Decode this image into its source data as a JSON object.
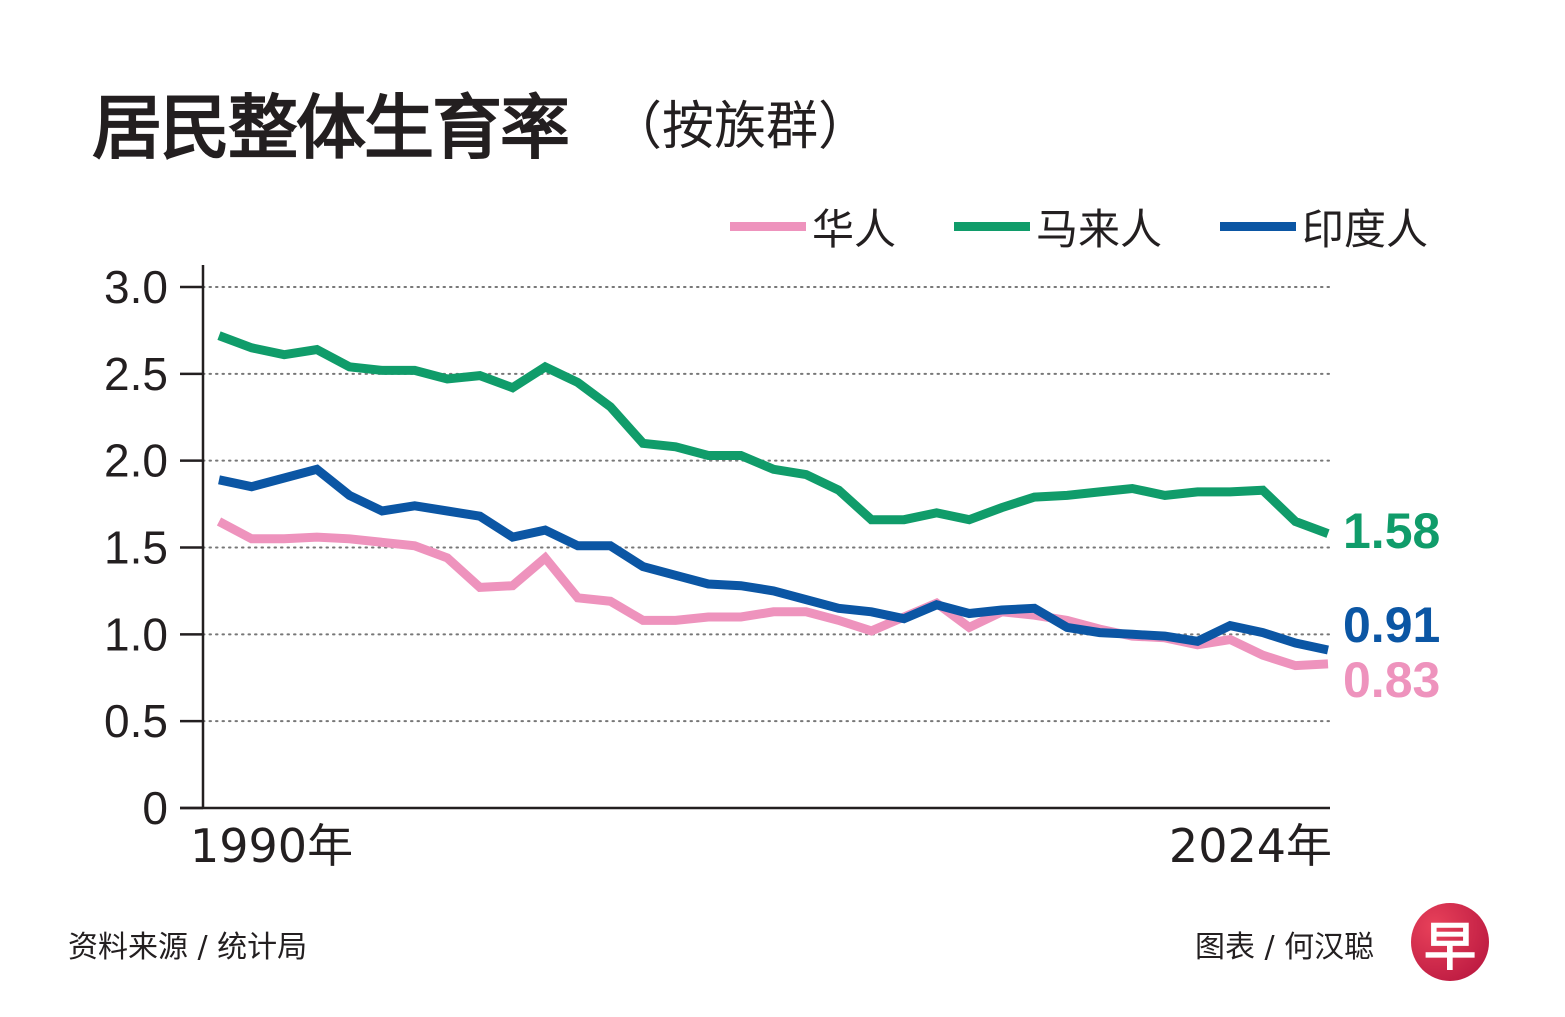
{
  "title": "居民整体生育率",
  "subtitle": "（按族群）",
  "legend": [
    {
      "label": "华人",
      "color": "#ee93bd"
    },
    {
      "label": "马来人",
      "color": "#109c6a"
    },
    {
      "label": "印度人",
      "color": "#0b56a4"
    }
  ],
  "footer": {
    "source": "资料来源 / 统计局",
    "credit": "图表 / 何汉聪",
    "logo_char": "早"
  },
  "chart_data": {
    "type": "line",
    "title": "居民整体生育率（按族群）",
    "xlabel": "",
    "ylabel": "",
    "x": [
      1990,
      1991,
      1992,
      1993,
      1994,
      1995,
      1996,
      1997,
      1998,
      1999,
      2000,
      2001,
      2002,
      2003,
      2004,
      2005,
      2006,
      2007,
      2008,
      2009,
      2010,
      2011,
      2012,
      2013,
      2014,
      2015,
      2016,
      2017,
      2018,
      2019,
      2020,
      2021,
      2022,
      2023,
      2024
    ],
    "x_tick_labels": [
      "1990年",
      "2024年"
    ],
    "ylim": [
      0,
      3.0
    ],
    "y_ticks": [
      0,
      0.5,
      1.0,
      1.5,
      2.0,
      2.5,
      3.0
    ],
    "y_tick_labels": [
      "0",
      "0.5",
      "1.0",
      "1.5",
      "2.0",
      "2.5",
      "3.0"
    ],
    "grid": "horizontal dotted",
    "legend_position": "top-right",
    "series": [
      {
        "name": "华人",
        "color": "#ee93bd",
        "end_label": "0.83",
        "values": [
          1.65,
          1.55,
          1.55,
          1.56,
          1.55,
          1.53,
          1.51,
          1.44,
          1.27,
          1.28,
          1.44,
          1.21,
          1.19,
          1.08,
          1.08,
          1.1,
          1.1,
          1.13,
          1.13,
          1.08,
          1.02,
          1.1,
          1.18,
          1.04,
          1.13,
          1.11,
          1.08,
          1.03,
          0.99,
          0.98,
          0.94,
          0.97,
          0.88,
          0.82,
          0.83
        ]
      },
      {
        "name": "马来人",
        "color": "#109c6a",
        "end_label": "1.58",
        "values": [
          2.72,
          2.65,
          2.61,
          2.64,
          2.54,
          2.52,
          2.52,
          2.47,
          2.49,
          2.42,
          2.54,
          2.45,
          2.31,
          2.1,
          2.08,
          2.03,
          2.03,
          1.95,
          1.92,
          1.83,
          1.66,
          1.66,
          1.7,
          1.66,
          1.73,
          1.79,
          1.8,
          1.82,
          1.84,
          1.8,
          1.82,
          1.82,
          1.83,
          1.65,
          1.58
        ]
      },
      {
        "name": "印度人",
        "color": "#0b56a4",
        "end_label": "0.91",
        "values": [
          1.89,
          1.85,
          1.9,
          1.95,
          1.8,
          1.71,
          1.74,
          1.71,
          1.68,
          1.56,
          1.6,
          1.51,
          1.51,
          1.39,
          1.34,
          1.29,
          1.28,
          1.25,
          1.2,
          1.15,
          1.13,
          1.09,
          1.17,
          1.12,
          1.14,
          1.15,
          1.04,
          1.01,
          1.0,
          0.99,
          0.96,
          1.05,
          1.01,
          0.95,
          0.91
        ]
      }
    ]
  }
}
